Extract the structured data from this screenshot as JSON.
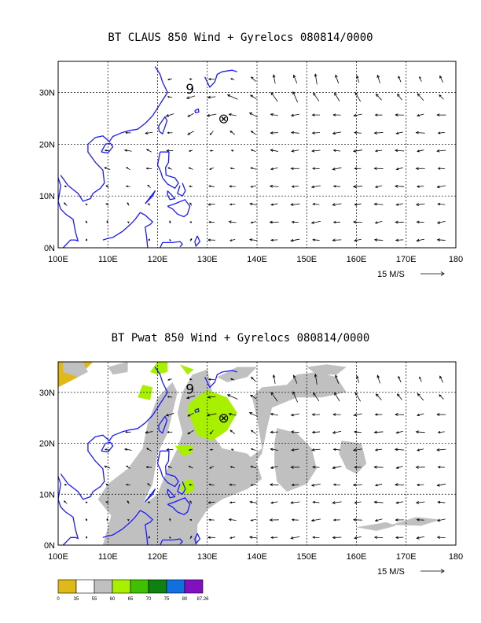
{
  "panel1": {
    "title": "BT CLAUS 850 Wind + Gyrelocs 080814/0000"
  },
  "panel2": {
    "title": "BT Pwat 850 Wind + Gyrelocs 080814/0000"
  },
  "map_axes": {
    "lon_labels": [
      "100E",
      "110E",
      "120E",
      "130E",
      "140E",
      "150E",
      "160E",
      "170E",
      "180"
    ],
    "lat_labels": [
      "0N",
      "10N",
      "20N",
      "30N"
    ],
    "lon_range": [
      100,
      180
    ],
    "lat_range": [
      0,
      36
    ],
    "gridlines": true
  },
  "scale_label": "15 M/S",
  "markers": {
    "gyre_symbol": "9",
    "gyre_center": "⊗"
  },
  "colorbar": {
    "labels": [
      "0",
      "35",
      "55",
      "60",
      "65",
      "70",
      "75",
      "80",
      "87.26"
    ],
    "colors": [
      "#e0b818",
      "#ffffff",
      "#c0c0c0",
      "#a8f000",
      "#40c000",
      "#108010",
      "#1070e0",
      "#8010c0"
    ]
  },
  "colors": {
    "coast": "#1a1aff",
    "shade_gray": "#c0c0c0",
    "shade_green": "#a8f000",
    "shade_yellow": "#e0b818"
  }
}
